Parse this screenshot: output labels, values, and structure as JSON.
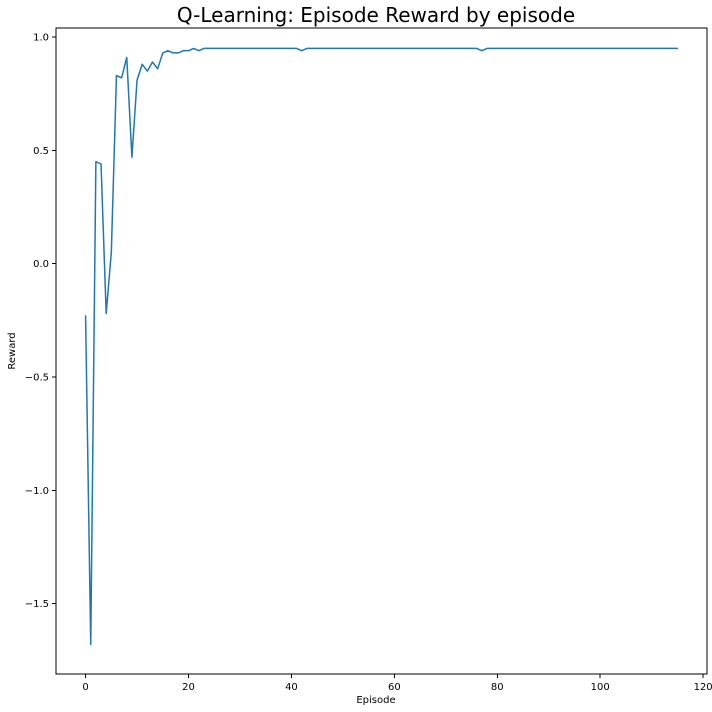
{
  "chart_data": {
    "type": "line",
    "title": "Q-Learning: Episode Reward by episode",
    "xlabel": "Episode",
    "ylabel": "Reward",
    "xlim": [
      -5.75,
      120.75
    ],
    "ylim": [
      -1.81,
      1.04
    ],
    "xticks": [
      0,
      20,
      40,
      60,
      80,
      100,
      120
    ],
    "yticks": [
      -1.5,
      -1.0,
      -0.5,
      0.0,
      0.5,
      1.0
    ],
    "xtick_labels": [
      "0",
      "20",
      "40",
      "60",
      "80",
      "100",
      "120"
    ],
    "ytick_labels": [
      "−1.5",
      "−1.0",
      "−0.5",
      "0.0",
      "0.5",
      "1.0"
    ],
    "grid": false,
    "color": "#1f77b4",
    "series": [
      {
        "x": [
          0,
          1,
          2,
          3,
          4,
          5,
          6,
          7,
          8,
          9,
          10,
          11,
          12,
          13,
          14,
          15,
          16,
          17,
          18,
          19,
          20,
          21,
          22,
          23,
          24,
          25,
          26,
          27,
          28,
          29,
          30,
          31,
          32,
          33,
          34,
          35,
          36,
          37,
          38,
          39,
          40,
          41,
          42,
          43,
          44,
          45,
          46,
          47,
          48,
          49,
          50,
          51,
          52,
          53,
          54,
          55,
          56,
          57,
          58,
          59,
          60,
          61,
          62,
          63,
          64,
          65,
          66,
          67,
          68,
          69,
          70,
          71,
          72,
          73,
          74,
          75,
          76,
          77,
          78,
          79,
          80,
          81,
          82,
          83,
          84,
          85,
          86,
          87,
          88,
          89,
          90,
          91,
          92,
          93,
          94,
          95,
          96,
          97,
          98,
          99,
          100,
          101,
          102,
          103,
          104,
          105,
          106,
          107,
          108,
          109,
          110,
          111,
          112,
          113,
          114,
          115
        ],
        "y": [
          -0.23,
          -1.68,
          0.45,
          0.44,
          -0.22,
          0.05,
          0.83,
          0.82,
          0.91,
          0.47,
          0.81,
          0.88,
          0.85,
          0.89,
          0.86,
          0.93,
          0.94,
          0.93,
          0.93,
          0.94,
          0.94,
          0.95,
          0.94,
          0.95,
          0.95,
          0.95,
          0.95,
          0.95,
          0.95,
          0.95,
          0.95,
          0.95,
          0.95,
          0.95,
          0.95,
          0.95,
          0.95,
          0.95,
          0.95,
          0.95,
          0.95,
          0.95,
          0.94,
          0.95,
          0.95,
          0.95,
          0.95,
          0.95,
          0.95,
          0.95,
          0.95,
          0.95,
          0.95,
          0.95,
          0.95,
          0.95,
          0.95,
          0.95,
          0.95,
          0.95,
          0.95,
          0.95,
          0.95,
          0.95,
          0.95,
          0.95,
          0.95,
          0.95,
          0.95,
          0.95,
          0.95,
          0.95,
          0.95,
          0.95,
          0.95,
          0.95,
          0.95,
          0.94,
          0.95,
          0.95,
          0.95,
          0.95,
          0.95,
          0.95,
          0.95,
          0.95,
          0.95,
          0.95,
          0.95,
          0.95,
          0.95,
          0.95,
          0.95,
          0.95,
          0.95,
          0.95,
          0.95,
          0.95,
          0.95,
          0.95,
          0.95,
          0.95,
          0.95,
          0.95,
          0.95,
          0.95,
          0.95,
          0.95,
          0.95,
          0.95,
          0.95,
          0.95,
          0.95,
          0.95,
          0.95,
          0.95
        ]
      }
    ]
  }
}
